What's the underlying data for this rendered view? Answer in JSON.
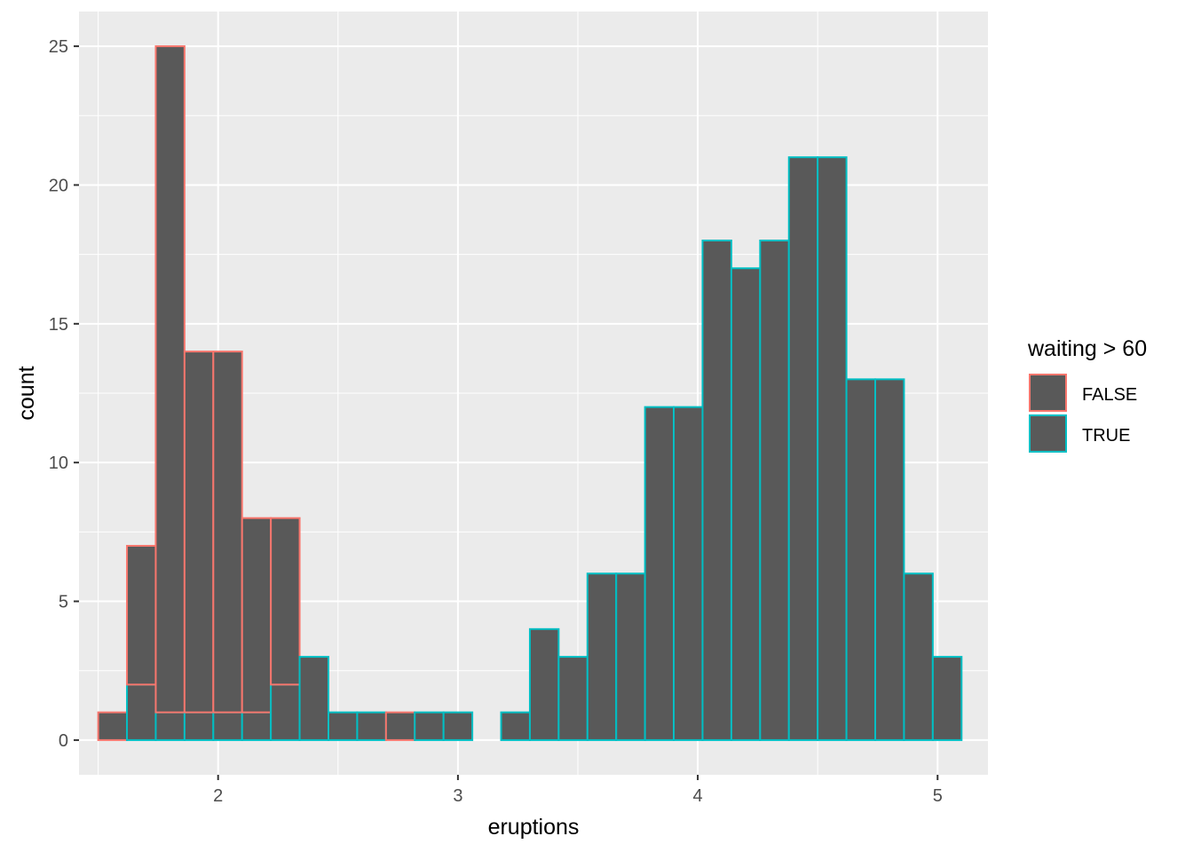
{
  "chart_data": {
    "type": "bar",
    "subtype": "stacked-histogram",
    "xlabel": "eruptions",
    "ylabel": "count",
    "xlim": [
      1.42,
      5.21
    ],
    "ylim": [
      -1.25,
      26.25
    ],
    "xticks": [
      2,
      3,
      4,
      5
    ],
    "yticks": [
      0,
      5,
      10,
      15,
      20,
      25
    ],
    "grid": true,
    "fill_color": "#595959",
    "panel_background": "#EBEBEB",
    "legend": {
      "title": "waiting > 60",
      "position": "right",
      "entries": [
        {
          "label": "FALSE",
          "color": "#F8766D"
        },
        {
          "label": "TRUE",
          "color": "#00BFC4"
        }
      ]
    },
    "bin_edges": [
      1.5,
      1.62,
      1.74,
      1.86,
      1.98,
      2.1,
      2.22,
      2.34,
      2.46,
      2.58,
      2.7,
      2.82,
      2.94,
      3.06,
      3.18,
      3.3,
      3.42,
      3.54,
      3.66,
      3.78,
      3.9,
      4.02,
      4.14,
      4.26,
      4.38,
      4.5,
      4.62,
      4.74,
      4.86,
      4.98,
      5.1
    ],
    "series": [
      {
        "name": "FALSE",
        "color": "#F8766D",
        "values": [
          1,
          5,
          24,
          13,
          13,
          7,
          6,
          0,
          0,
          0,
          1,
          0,
          0,
          0,
          0,
          0,
          0,
          0,
          0,
          0,
          0,
          0,
          0,
          0,
          0,
          0,
          0,
          0,
          0,
          0
        ]
      },
      {
        "name": "TRUE",
        "color": "#00BFC4",
        "values": [
          0,
          2,
          1,
          1,
          1,
          1,
          2,
          3,
          1,
          1,
          0,
          1,
          1,
          0,
          1,
          4,
          3,
          6,
          6,
          12,
          12,
          18,
          17,
          18,
          21,
          21,
          13,
          13,
          6,
          3
        ]
      }
    ]
  }
}
